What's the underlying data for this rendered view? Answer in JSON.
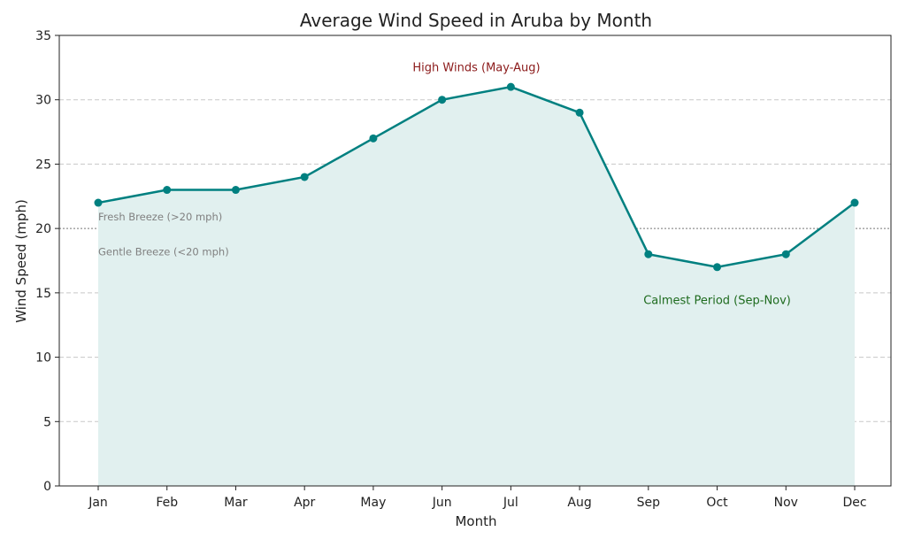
{
  "chart_data": {
    "type": "line",
    "title": "Average Wind Speed in Aruba by Month",
    "xlabel": "Month",
    "ylabel": "Wind Speed (mph)",
    "categories": [
      "Jan",
      "Feb",
      "Mar",
      "Apr",
      "May",
      "Jun",
      "Jul",
      "Aug",
      "Sep",
      "Oct",
      "Nov",
      "Dec"
    ],
    "values": [
      22,
      23,
      23,
      24,
      27,
      30,
      31,
      29,
      18,
      17,
      18,
      22
    ],
    "ylim": [
      0,
      35
    ],
    "yticks": [
      0,
      5,
      10,
      15,
      20,
      25,
      30,
      35
    ],
    "grid": "horizontal dashed",
    "area_fill": true,
    "reference_line": {
      "y": 20,
      "style": "dotted"
    },
    "annotations": [
      {
        "text": "High Winds (May-Aug)",
        "x": 5.5,
        "y": 32.5,
        "color": "#8b1a1a"
      },
      {
        "text": "Calmest Period (Sep-Nov)",
        "x": 9,
        "y": 14.4,
        "color": "#1e6b1e"
      },
      {
        "text": "Fresh Breeze (>20 mph)",
        "x": 0,
        "y": 20.9,
        "color": "#808080"
      },
      {
        "text": "Gentle Breeze (<20 mph)",
        "x": 0,
        "y": 18.2,
        "color": "#808080"
      }
    ],
    "colors": {
      "line": "#008080",
      "fill": "#e1f0ef"
    }
  }
}
